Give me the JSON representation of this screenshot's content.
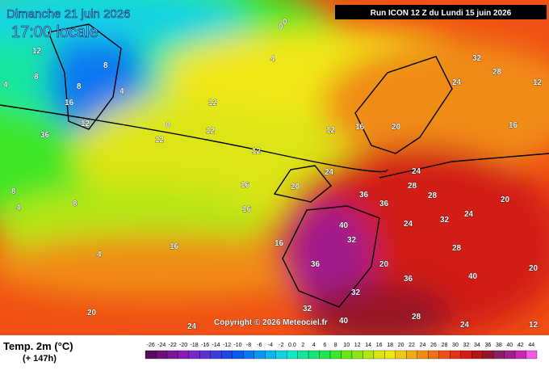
{
  "header": {
    "date": "Dimanche 21 juin 2026",
    "time": "17:00 locale",
    "run": "Run ICON 12 Z du Lundi 15 juin 2026"
  },
  "copyright": "Copyright © 2026 Meteociel.fr",
  "legend": {
    "title": "Temp. 2m (°C)",
    "lead": "(+ 147h)",
    "ticks": [
      "-26",
      "-24",
      "-22",
      "-20",
      "-18",
      "-16",
      "-14",
      "-12",
      "-10",
      "-8",
      "-6",
      "-4",
      "-2",
      "0.0",
      "2",
      "4",
      "6",
      "8",
      "10",
      "12",
      "14",
      "16",
      "18",
      "20",
      "22",
      "24",
      "26",
      "28",
      "30",
      "32",
      "34",
      "36",
      "38",
      "40",
      "42",
      "44"
    ],
    "colors": [
      "#5a0a5a",
      "#6e0f78",
      "#7d1496",
      "#8c19b4",
      "#7828c8",
      "#5a32d2",
      "#3c3cdc",
      "#1e46e6",
      "#0a5af0",
      "#0a78f0",
      "#0a96f0",
      "#0ab4f0",
      "#14d2e6",
      "#14e6c8",
      "#14e6a0",
      "#14e678",
      "#1ee650",
      "#3ce628",
      "#64e614",
      "#8ce614",
      "#b4e614",
      "#dce614",
      "#f0e614",
      "#f0c814",
      "#f0aa14",
      "#f08c14",
      "#f06e14",
      "#f05014",
      "#e63214",
      "#d21e14",
      "#b41414",
      "#961428",
      "#8c1e64",
      "#a01e8c",
      "#c828b4",
      "#f05ae6"
    ]
  },
  "map_labels": [
    "0",
    "4",
    "8",
    "4",
    "12",
    "16",
    "12",
    "12",
    "12",
    "8",
    "0",
    "4",
    "8",
    "12",
    "16",
    "20",
    "24",
    "28",
    "32",
    "36",
    "40",
    "24",
    "20",
    "16",
    "12",
    "8",
    "4",
    "16",
    "20",
    "24",
    "28",
    "32",
    "36",
    "40",
    "32",
    "28",
    "24",
    "20",
    "12",
    "16",
    "20",
    "24",
    "28",
    "32",
    "36",
    "24",
    "20",
    "16",
    "12",
    "4",
    "0",
    "8",
    "12",
    "16",
    "24",
    "28",
    "32",
    "36",
    "40",
    "36"
  ]
}
